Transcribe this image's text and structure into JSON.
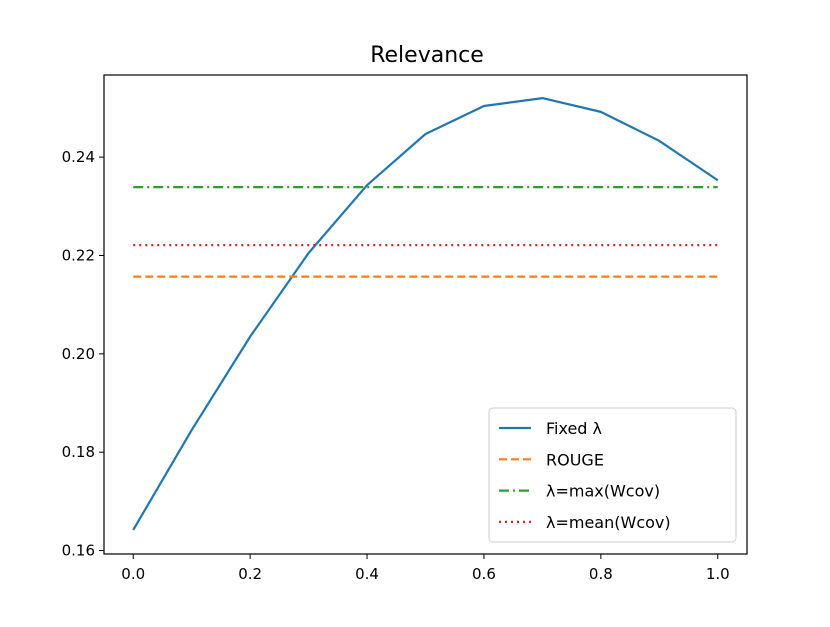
{
  "chart_data": {
    "type": "line",
    "title": "Relevance",
    "xlabel": "",
    "ylabel": "",
    "xlim": [
      -0.05,
      1.05
    ],
    "ylim": [
      0.1593,
      0.2567
    ],
    "xticks": [
      0.0,
      0.2,
      0.4,
      0.6,
      0.8,
      1.0
    ],
    "xtick_labels": [
      "0.0",
      "0.2",
      "0.4",
      "0.6",
      "0.8",
      "1.0"
    ],
    "yticks": [
      0.16,
      0.18,
      0.2,
      0.22,
      0.24
    ],
    "ytick_labels": [
      "0.16",
      "0.18",
      "0.20",
      "0.22",
      "0.24"
    ],
    "grid": false,
    "legend_position": "bottom-right",
    "series": [
      {
        "name": "Fixed λ",
        "style": "solid",
        "color": "#1f77b4",
        "x": [
          0.0,
          0.1,
          0.2,
          0.3,
          0.4,
          0.5,
          0.6,
          0.7,
          0.8,
          0.9,
          1.0
        ],
        "y": [
          0.1642,
          0.1845,
          0.2035,
          0.2205,
          0.2343,
          0.2447,
          0.2504,
          0.252,
          0.2492,
          0.2433,
          0.2353
        ]
      },
      {
        "name": "ROUGE",
        "style": "dashed",
        "color": "#ff7f0e",
        "x": [
          0.0,
          1.0
        ],
        "y": [
          0.2157,
          0.2157
        ]
      },
      {
        "name": "λ=max(Wcov)",
        "style": "dashdot",
        "color": "#2ca02c",
        "x": [
          0.0,
          1.0
        ],
        "y": [
          0.2339,
          0.2339
        ]
      },
      {
        "name": "λ=mean(Wcov)",
        "style": "dotted",
        "color": "#d62728",
        "x": [
          0.0,
          1.0
        ],
        "y": [
          0.2221,
          0.2221
        ]
      }
    ]
  }
}
